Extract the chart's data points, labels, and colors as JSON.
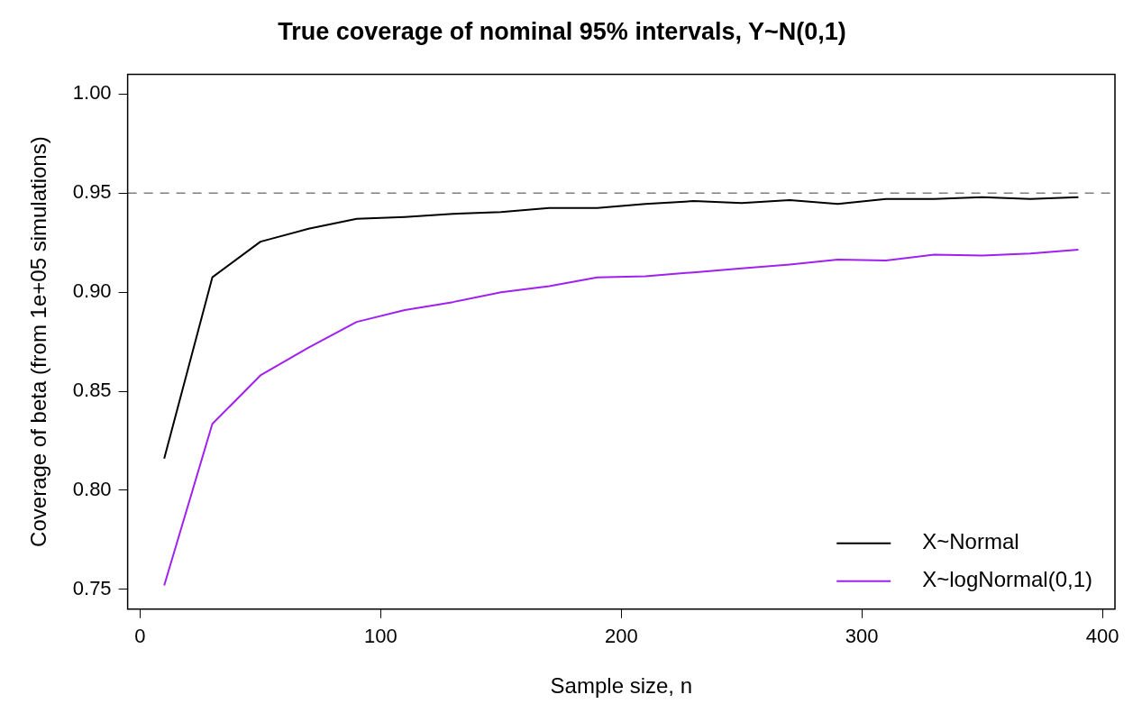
{
  "chart_data": {
    "type": "line",
    "title": "True coverage of nominal 95% intervals, Y~N(0,1)",
    "xlabel": "Sample size, n",
    "ylabel": "Coverage of beta (from 1e+05 simulations)",
    "x": [
      10,
      30,
      50,
      70,
      90,
      110,
      130,
      150,
      170,
      190,
      210,
      230,
      250,
      270,
      290,
      310,
      330,
      350,
      370,
      390
    ],
    "series": [
      {
        "name": "X~Normal",
        "color": "#000000",
        "values": [
          0.816,
          0.9075,
          0.9255,
          0.932,
          0.937,
          0.938,
          0.9395,
          0.9405,
          0.9425,
          0.9425,
          0.9445,
          0.946,
          0.945,
          0.9465,
          0.9445,
          0.947,
          0.947,
          0.948,
          0.947,
          0.948
        ]
      },
      {
        "name": "X~logNormal(0,1)",
        "color": "#a020f0",
        "values": [
          0.752,
          0.8335,
          0.858,
          0.872,
          0.885,
          0.891,
          0.895,
          0.9,
          0.903,
          0.9075,
          0.908,
          0.91,
          0.912,
          0.914,
          0.9165,
          0.916,
          0.919,
          0.9185,
          0.9195,
          0.9215
        ]
      }
    ],
    "xlim": [
      -5.2,
      405.2
    ],
    "xticks": [
      0,
      100,
      200,
      300,
      400
    ],
    "ylim": [
      0.74,
      1.01
    ],
    "yticks": [
      {
        "value": 0.75,
        "label": "0.75"
      },
      {
        "value": 0.8,
        "label": "0.80"
      },
      {
        "value": 0.85,
        "label": "0.85"
      },
      {
        "value": 0.9,
        "label": "0.90"
      },
      {
        "value": 0.95,
        "label": "0.95"
      },
      {
        "value": 1,
        "label": "1.00"
      }
    ],
    "ref_lines": [
      {
        "axis": "y",
        "value": 0.95,
        "color": "#808080",
        "line_style": "dashed"
      }
    ],
    "legend": "bottom right",
    "grid": false,
    "marker": "none",
    "line_style": "solid"
  }
}
